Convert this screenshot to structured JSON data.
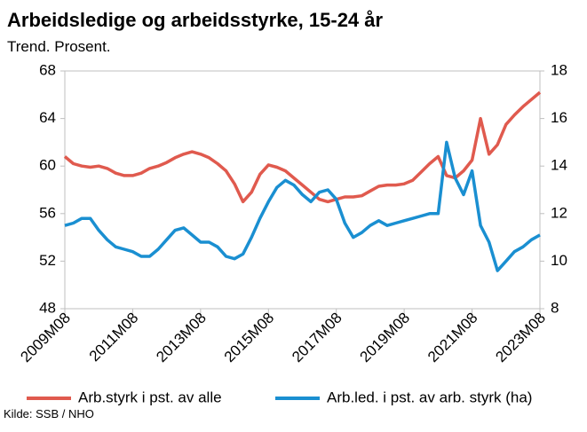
{
  "chart_data": {
    "type": "line",
    "title": "Arbeidsledige og arbeidsstyrke,  15-24 år",
    "subtitle": "Trend. Prosent.",
    "source": "Kilde: SSB / NHO",
    "categories": [
      "2009M08",
      null,
      null,
      null,
      null,
      null,
      null,
      null,
      "2011M08",
      null,
      null,
      null,
      null,
      null,
      null,
      null,
      "2013M08",
      null,
      null,
      null,
      null,
      null,
      null,
      null,
      "2015M08",
      null,
      null,
      null,
      null,
      null,
      null,
      null,
      "2017M08",
      null,
      null,
      null,
      null,
      null,
      null,
      null,
      "2019M08",
      null,
      null,
      null,
      null,
      null,
      null,
      null,
      "2021M08",
      null,
      null,
      null,
      null,
      null,
      null,
      null,
      "2023M08"
    ],
    "ylim": [
      48,
      68
    ],
    "yticks": [
      48,
      52,
      56,
      60,
      64,
      68
    ],
    "y2lim": [
      8,
      18
    ],
    "y2ticks": [
      8,
      10,
      12,
      14,
      16,
      18
    ],
    "grid": false,
    "legend": "bottom",
    "series": [
      {
        "name": "Arb.styrk i pst. av alle",
        "color": "#e05a4e",
        "values": [
          60.8,
          60.2,
          60.0,
          59.9,
          60.0,
          59.8,
          59.4,
          59.2,
          59.2,
          59.4,
          59.8,
          60.0,
          60.3,
          60.7,
          61.0,
          61.2,
          61.0,
          60.7,
          60.2,
          59.6,
          58.5,
          57.0,
          57.8,
          59.3,
          60.1,
          59.9,
          59.6,
          59.0,
          58.4,
          57.8,
          57.2,
          57.0,
          57.2,
          57.4,
          57.4,
          57.5,
          57.9,
          58.3,
          58.4,
          58.4,
          58.5,
          58.8,
          59.5,
          60.2,
          60.8,
          59.2,
          59.0,
          59.6,
          60.5,
          64.0,
          61.0,
          61.8,
          63.5,
          64.3,
          65.0,
          65.6,
          66.2
        ]
      },
      {
        "name": "Arb.led. i pst. av arb. styrk (ha)",
        "color": "#1a8fd1",
        "axis": "y2",
        "values": [
          11.5,
          11.6,
          11.8,
          11.8,
          11.3,
          10.9,
          10.6,
          10.5,
          10.4,
          10.2,
          10.2,
          10.5,
          10.9,
          11.3,
          11.4,
          11.1,
          10.8,
          10.8,
          10.6,
          10.2,
          10.1,
          10.3,
          11.0,
          11.8,
          12.5,
          13.1,
          13.4,
          13.2,
          12.8,
          12.5,
          12.9,
          13.0,
          12.6,
          11.6,
          11.0,
          11.2,
          11.5,
          11.7,
          11.5,
          11.6,
          11.7,
          11.8,
          11.9,
          12.0,
          12.0,
          15.0,
          13.5,
          12.8,
          13.8,
          11.5,
          10.8,
          9.6,
          10.0,
          10.4,
          10.6,
          10.9,
          11.1
        ]
      }
    ]
  }
}
